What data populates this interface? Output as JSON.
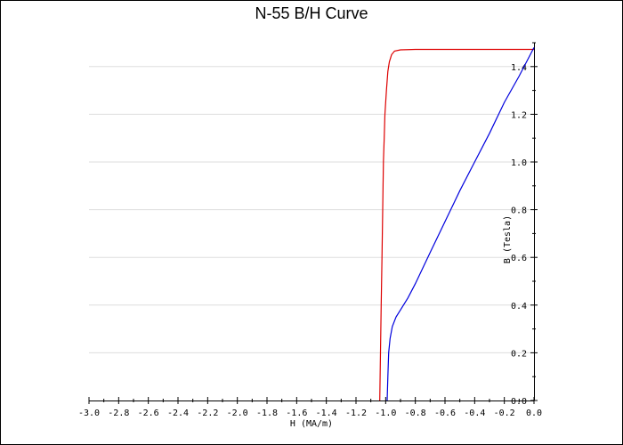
{
  "chart_data": {
    "type": "line",
    "title": "N-55 B/H Curve",
    "xlabel": "H (MA/m)",
    "ylabel": "B (Tesla)",
    "xlim": [
      -3.0,
      0.0
    ],
    "ylim": [
      0.0,
      1.5
    ],
    "grid": "horizontal",
    "x_ticks": [
      "-3.0",
      "-2.8",
      "-2.6",
      "-2.4",
      "-2.2",
      "-2.0",
      "-1.8",
      "-1.6",
      "-1.4",
      "-1.2",
      "-1.0",
      "-0.8",
      "-0.6",
      "-0.4",
      "-0.2",
      "0.0"
    ],
    "y_ticks": [
      "0.0",
      "0.2",
      "0.4",
      "0.6",
      "0.8",
      "1.0",
      "1.2",
      "1.4"
    ],
    "y_axis_side": "right",
    "series": [
      {
        "color": "#dd0000",
        "points": [
          [
            -1.04,
            0.0
          ],
          [
            -1.035,
            0.2
          ],
          [
            -1.03,
            0.4
          ],
          [
            -1.025,
            0.6
          ],
          [
            -1.02,
            0.8
          ],
          [
            -1.015,
            1.0
          ],
          [
            -1.01,
            1.1
          ],
          [
            -1.005,
            1.2
          ],
          [
            -0.995,
            1.3
          ],
          [
            -0.985,
            1.38
          ],
          [
            -0.975,
            1.42
          ],
          [
            -0.96,
            1.45
          ],
          [
            -0.94,
            1.465
          ],
          [
            -0.9,
            1.47
          ],
          [
            -0.8,
            1.472
          ],
          [
            -0.6,
            1.472
          ],
          [
            -0.4,
            1.472
          ],
          [
            -0.2,
            1.472
          ],
          [
            0.0,
            1.472
          ]
        ]
      },
      {
        "color": "#0000dd",
        "points": [
          [
            -0.99,
            0.0
          ],
          [
            -0.985,
            0.1
          ],
          [
            -0.98,
            0.2
          ],
          [
            -0.97,
            0.26
          ],
          [
            -0.955,
            0.31
          ],
          [
            -0.93,
            0.35
          ],
          [
            -0.9,
            0.38
          ],
          [
            -0.85,
            0.43
          ],
          [
            -0.8,
            0.49
          ],
          [
            -0.7,
            0.62
          ],
          [
            -0.6,
            0.75
          ],
          [
            -0.5,
            0.88
          ],
          [
            -0.4,
            1.0
          ],
          [
            -0.3,
            1.12
          ],
          [
            -0.2,
            1.25
          ],
          [
            -0.1,
            1.36
          ],
          [
            0.0,
            1.48
          ]
        ]
      }
    ]
  }
}
